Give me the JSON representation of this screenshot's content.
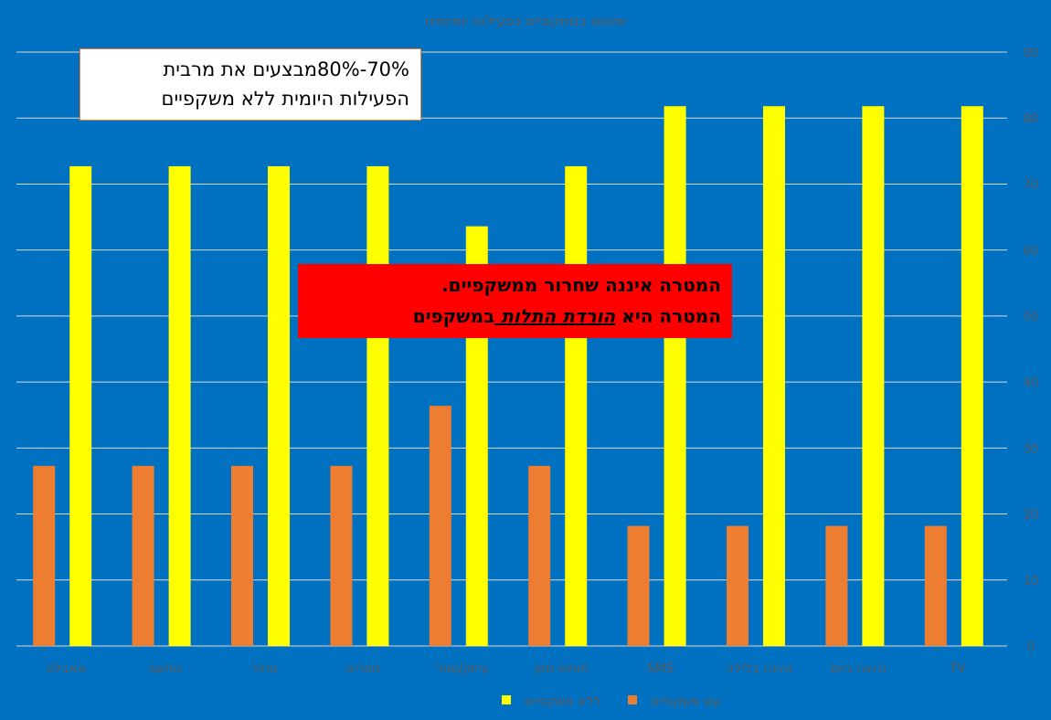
{
  "colors": {
    "background": "#0070C0",
    "series_without": "#FFFF00",
    "series_with": "#ED7D31",
    "gridline": "#D9D9D9",
    "text_faint": "#595959",
    "callout_red": "#FF0000"
  },
  "chart_data": {
    "type": "bar",
    "title": "שימוש במשקפיים בפעילות יומיומית",
    "xlabel": "",
    "ylabel": "",
    "ylim": [
      0,
      90
    ],
    "yticks": [
      0,
      10,
      20,
      30,
      40,
      50,
      60,
      70,
      80,
      90
    ],
    "y_axis_position": "right",
    "grid": true,
    "legend_position": "bottom",
    "categories": [
      "טאבלט",
      "מחשב",
      "מחיר",
      "תפריט",
      "עיתון/ספר",
      "תוויות מזון",
      "SMS",
      "נהיגה בלילה",
      "נהיגה ביום",
      "TV"
    ],
    "series": [
      {
        "name": "עם משקפיים",
        "color": "#ED7D31",
        "values": [
          27.3,
          27.3,
          27.3,
          27.3,
          36.4,
          27.3,
          18.2,
          18.2,
          18.2,
          18.2
        ]
      },
      {
        "name": "ללא משקפיים",
        "color": "#FFFF00",
        "values": [
          72.7,
          72.7,
          72.7,
          72.7,
          63.6,
          72.7,
          81.8,
          81.8,
          81.8,
          81.8
        ]
      }
    ],
    "annotations": {
      "box1": {
        "line1": "70%-80%מבצעים את מרבית",
        "line2": "הפעילות היומית ללא משקפיים"
      },
      "box2": {
        "line1": "המטרה איננה שחרור ממשקפיים.",
        "line2_pre": "המטרה היא ",
        "line2_emph": "הורדת התלות ",
        "line2_post": "במשקפים"
      }
    }
  }
}
